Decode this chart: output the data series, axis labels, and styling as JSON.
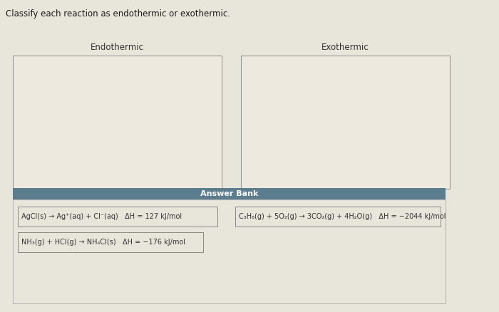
{
  "page_bg": "#e8e5da",
  "title": "Classify each reaction as endothermic or exothermic.",
  "title_fontsize": 8.5,
  "title_color": "#1a1a1a",
  "box_left_label": "Endothermic",
  "box_right_label": "Exothermic",
  "label_fontsize": 8.5,
  "label_color": "#333333",
  "box_bg": "#ede9df",
  "box_border_color": "#999999",
  "answer_bank_label": "Answer Bank",
  "answer_bank_bg": "#5b7d8e",
  "answer_bank_fg": "#ffffff",
  "answer_bank_fontsize": 8,
  "bottom_bg": "#e8e5da",
  "bottom_border": "#aaaaaa",
  "card_bg": "#e8e5da",
  "card_border": "#888888",
  "card_fontsize": 7.0,
  "card_text_color": "#333333",
  "cards": [
    {
      "text": "AgCl(s) → Ag⁺(aq) + Cl⁻(aq)   ΔH = 127 kJ/mol",
      "row": 0,
      "col": 0
    },
    {
      "text": "C₃H₈(g) + 5O₂(g) → 3CO₂(g) + 4H₂O(g)   ΔH = −2044 kJ/mol",
      "row": 0,
      "col": 1
    },
    {
      "text": "NH₃(g) + HCl(g) → NH₄Cl(s)   ΔH = −176 kJ/mol",
      "row": 1,
      "col": 0
    }
  ],
  "fig_width": 7.0,
  "fig_height": 4.38,
  "dpi": 100
}
